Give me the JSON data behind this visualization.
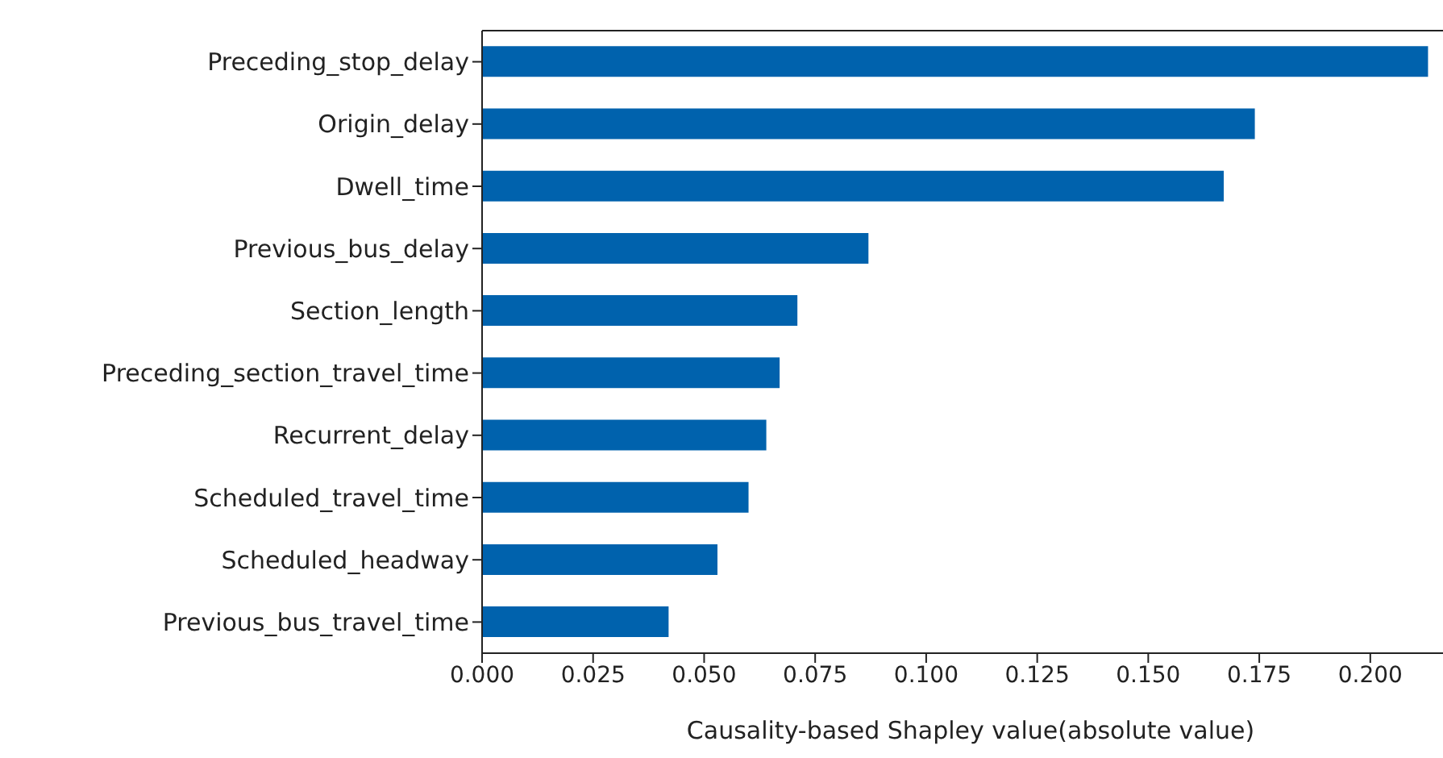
{
  "chart_data": {
    "type": "bar",
    "orientation": "horizontal",
    "xlabel": "Causality-based Shapley value(absolute value)",
    "categories": [
      "Preceding_stop_delay",
      "Origin_delay",
      "Dwell_time",
      "Previous_bus_delay",
      "Section_length",
      "Preceding_section_travel_time",
      "Recurrent_delay",
      "Scheduled_travel_time",
      "Scheduled_headway",
      "Previous_bus_travel_time"
    ],
    "values": [
      0.213,
      0.174,
      0.167,
      0.087,
      0.071,
      0.067,
      0.064,
      0.06,
      0.053,
      0.042
    ],
    "color": "#0062ad",
    "xlim": [
      0,
      0.22
    ],
    "xticks": [
      {
        "value": 0,
        "label": "0.000"
      },
      {
        "value": 0.025,
        "label": "0.025"
      },
      {
        "value": 0.05,
        "label": "0.050"
      },
      {
        "value": 0.075,
        "label": "0.075"
      },
      {
        "value": 0.1,
        "label": "0.100"
      },
      {
        "value": 0.125,
        "label": "0.125"
      },
      {
        "value": 0.15,
        "label": "0.150"
      },
      {
        "value": 0.175,
        "label": "0.175"
      },
      {
        "value": 0.2,
        "label": "0.200"
      }
    ]
  }
}
